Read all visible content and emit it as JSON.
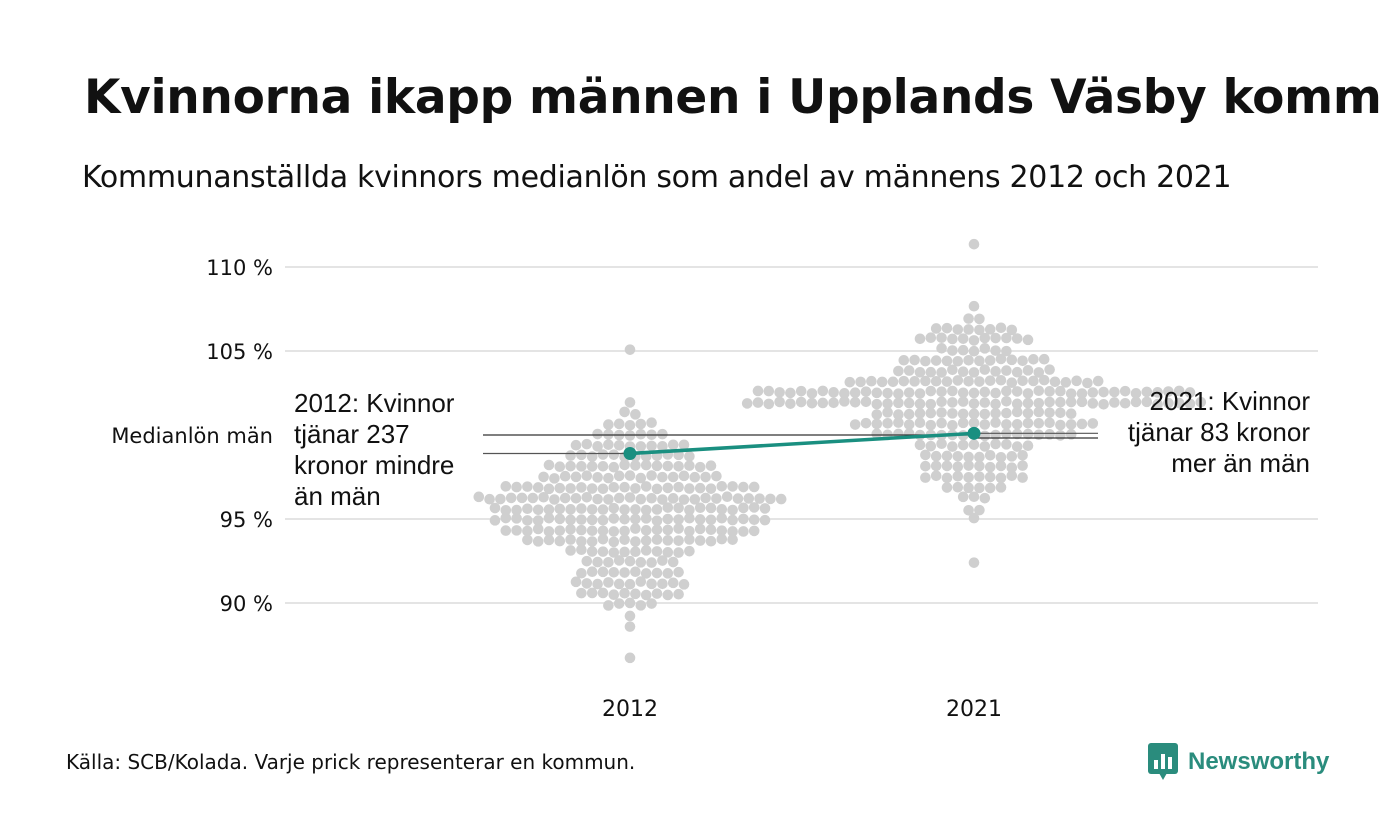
{
  "title": "Kvinnorna ikapp männen i Upplands Väsby kommun",
  "subtitle": "Kommunanställda kvinnors medianlön som andel av männens 2012 och 2021",
  "source": "Källa: SCB/Kolada. Varje prick representerar en kommun.",
  "brand": {
    "name": "Newsworthy",
    "color": "#2a8c7d"
  },
  "colors": {
    "dots": "#cfcfcf",
    "highlight": "#1a8f80",
    "grid": "#e4e4e4",
    "text": "#111111"
  },
  "annotations": {
    "left": [
      "2012: Kvinnor",
      "tjänar 237",
      "kronor mindre",
      "än män"
    ],
    "right": [
      "2021: Kvinnor",
      "tjänar 83 kronor",
      "mer än män"
    ]
  },
  "chart_data": {
    "type": "scatter",
    "subtype": "beeswarm",
    "categories": [
      "2012",
      "2021"
    ],
    "y_ticks": [
      {
        "value": 90,
        "label": "90 %"
      },
      {
        "value": 95,
        "label": "95 %"
      },
      {
        "value": 100,
        "label": "Medianlön män"
      },
      {
        "value": 105,
        "label": "105 %"
      },
      {
        "value": 110,
        "label": "110 %"
      }
    ],
    "ylim": [
      86,
      111.5
    ],
    "grid": true,
    "distributions": [
      {
        "category": "2012",
        "min": 86.5,
        "max": 105.1,
        "center": 95.2,
        "spread": 2.5
      },
      {
        "category": "2021",
        "min": 92.5,
        "max": 111.3,
        "center": 101.8,
        "spread": 2.3
      }
    ],
    "highlight": {
      "name": "Upplands Väsby",
      "values": [
        {
          "category": "2012",
          "value": 98.9
        },
        {
          "category": "2021",
          "value": 100.1
        }
      ]
    }
  }
}
